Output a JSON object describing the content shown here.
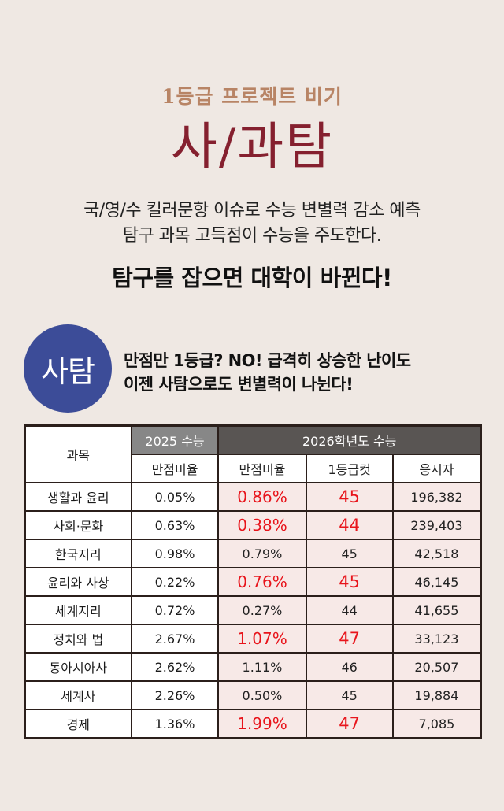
{
  "header": {
    "kicker": "1등급 프로젝트 비기",
    "title": "사/과탐",
    "description_lines": [
      "국/영/수 킬러문항 이슈로 수능 변별력 감소 예측",
      "탐구 과목 고득점이 수능을 주도한다."
    ],
    "headline": "탐구를 잡으면 대학이 바뀐다!"
  },
  "section": {
    "badge": "사탐",
    "badge_color": "#3c4c98",
    "tagline_lines": [
      "만점만 1등급? NO! 급격히 상승한 난이도",
      "이젠 사탐으로도 변별력이 나뉜다!"
    ]
  },
  "table": {
    "subject_header": "과목",
    "group_2025": "2025 수능",
    "group_2026": "2026학년도 수능",
    "sub_headers": [
      "만점비율",
      "만점비율",
      "1등급컷",
      "응시자"
    ],
    "highlight_color": "#e8141b",
    "rows": [
      {
        "subject": "생활과 윤리",
        "perfect_2025": "0.05%",
        "perfect_2026": "0.86%",
        "cut_2026": "45",
        "takers": "196,382",
        "highlight": true
      },
      {
        "subject": "사회·문화",
        "perfect_2025": "0.63%",
        "perfect_2026": "0.38%",
        "cut_2026": "44",
        "takers": "239,403",
        "highlight": true
      },
      {
        "subject": "한국지리",
        "perfect_2025": "0.98%",
        "perfect_2026": "0.79%",
        "cut_2026": "45",
        "takers": "42,518",
        "highlight": false
      },
      {
        "subject": "윤리와 사상",
        "perfect_2025": "0.22%",
        "perfect_2026": "0.76%",
        "cut_2026": "45",
        "takers": "46,145",
        "highlight": true
      },
      {
        "subject": "세계지리",
        "perfect_2025": "0.72%",
        "perfect_2026": "0.27%",
        "cut_2026": "44",
        "takers": "41,655",
        "highlight": false
      },
      {
        "subject": "정치와 법",
        "perfect_2025": "2.67%",
        "perfect_2026": "1.07%",
        "cut_2026": "47",
        "takers": "33,123",
        "highlight": true
      },
      {
        "subject": "동아시아사",
        "perfect_2025": "2.62%",
        "perfect_2026": "1.11%",
        "cut_2026": "46",
        "takers": "20,507",
        "highlight": false
      },
      {
        "subject": "세계사",
        "perfect_2025": "2.26%",
        "perfect_2026": "0.50%",
        "cut_2026": "45",
        "takers": "19,884",
        "highlight": false
      },
      {
        "subject": "경제",
        "perfect_2025": "1.36%",
        "perfect_2026": "1.99%",
        "cut_2026": "47",
        "takers": "7,085",
        "highlight": true
      }
    ]
  }
}
